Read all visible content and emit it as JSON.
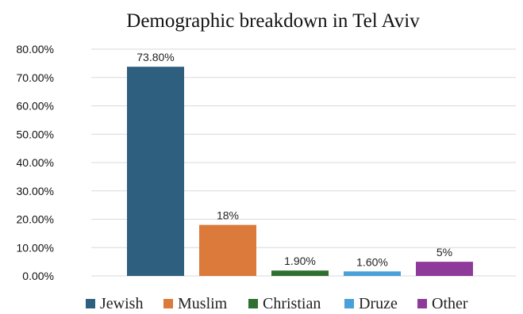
{
  "chart_data": {
    "type": "bar",
    "title": "Demographic breakdown in Tel Aviv",
    "categories": [
      "Jewish",
      "Muslim",
      "Christian",
      "Druze",
      "Other"
    ],
    "values": [
      73.8,
      18,
      1.9,
      1.6,
      5
    ],
    "data_labels": [
      "73.80%",
      "18%",
      "1.90%",
      "1.60%",
      "5%"
    ],
    "colors": [
      "#2f5f7f",
      "#db7a3a",
      "#2f6f2f",
      "#4aa0d8",
      "#8e3a9a"
    ],
    "ylim": [
      0,
      80
    ],
    "yticks": [
      0,
      10,
      20,
      30,
      40,
      50,
      60,
      70,
      80
    ],
    "ytick_labels": [
      "0.00%",
      "10.00%",
      "20.00%",
      "30.00%",
      "40.00%",
      "50.00%",
      "60.00%",
      "70.00%",
      "80.00%"
    ],
    "grid": true,
    "legend_position": "bottom"
  }
}
